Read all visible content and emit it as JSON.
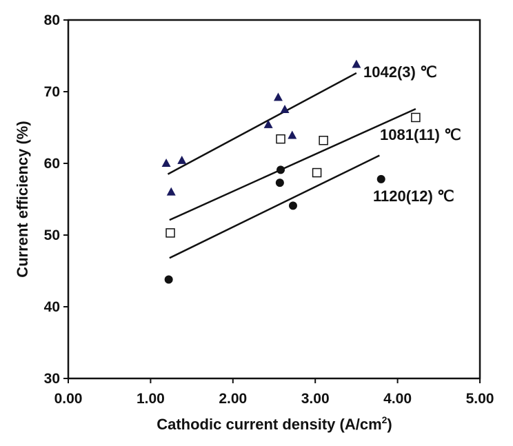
{
  "chart_data": {
    "type": "scatter",
    "xlabel": "Cathodic current density (A/cm",
    "xlabel_sup": "2",
    "xlabel_end": ")",
    "ylabel": "Current efficiency (%)",
    "xlim": [
      0,
      5
    ],
    "ylim": [
      30,
      80
    ],
    "x_ticks": [
      "0.00",
      "1.00",
      "2.00",
      "3.00",
      "4.00",
      "5.00"
    ],
    "y_ticks": [
      "30",
      "40",
      "50",
      "60",
      "70",
      "80"
    ],
    "grid": false,
    "series": [
      {
        "name": "1042(3) ℃",
        "marker": "triangle",
        "color": "#1a1a5e",
        "points": [
          [
            1.19,
            60.0
          ],
          [
            1.25,
            56.0
          ],
          [
            1.38,
            60.4
          ],
          [
            2.43,
            65.4
          ],
          [
            2.55,
            69.2
          ],
          [
            2.63,
            67.5
          ],
          [
            2.72,
            63.9
          ],
          [
            3.5,
            73.8
          ]
        ],
        "fit": [
          [
            1.21,
            58.5
          ],
          [
            3.5,
            72.6
          ]
        ]
      },
      {
        "name": "1081(11) ℃",
        "marker": "square-open",
        "color": "#111111",
        "points": [
          [
            1.24,
            50.3
          ],
          [
            2.58,
            63.4
          ],
          [
            3.02,
            58.7
          ],
          [
            3.1,
            63.2
          ],
          [
            4.22,
            66.4
          ]
        ],
        "fit": [
          [
            1.23,
            52.1
          ],
          [
            4.22,
            67.6
          ]
        ]
      },
      {
        "name": "1120(12) ℃",
        "marker": "circle",
        "color": "#111111",
        "points": [
          [
            1.22,
            43.8
          ],
          [
            2.57,
            57.3
          ],
          [
            2.58,
            59.1
          ],
          [
            2.73,
            54.1
          ],
          [
            3.8,
            57.8
          ]
        ],
        "fit": [
          [
            1.23,
            46.8
          ],
          [
            3.78,
            61.1
          ]
        ]
      }
    ]
  }
}
